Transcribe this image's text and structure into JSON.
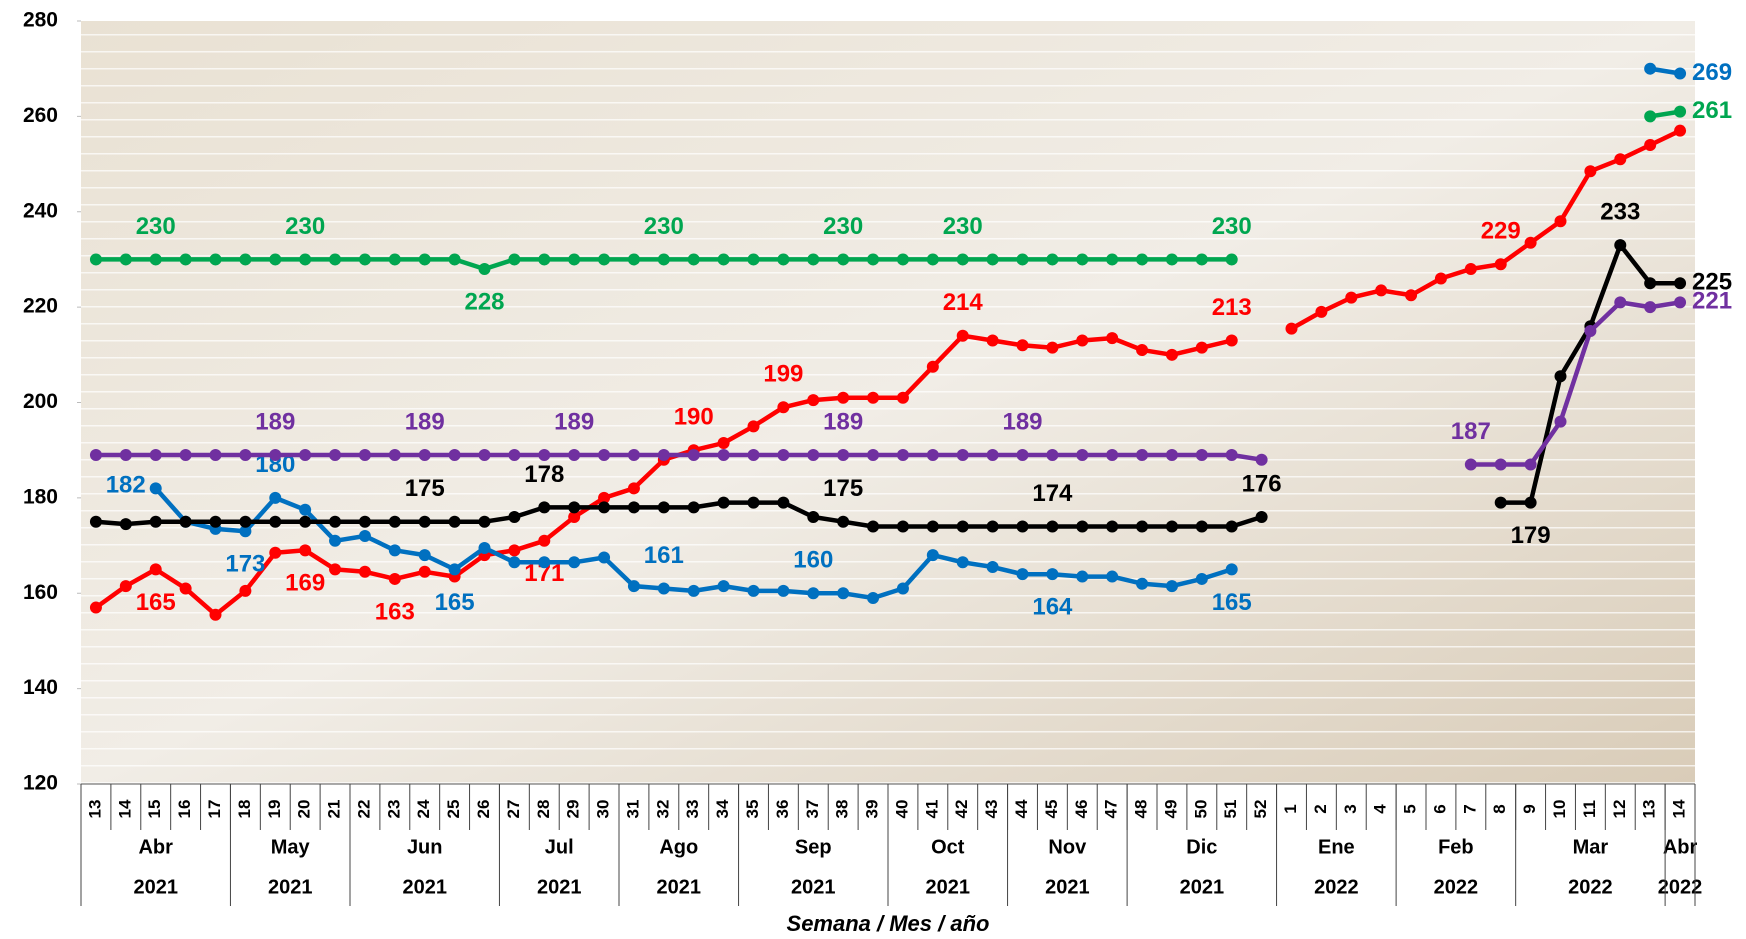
{
  "chart_data": {
    "type": "line",
    "x_title": "Semana / Mes / año",
    "categories": [
      "13",
      "14",
      "15",
      "16",
      "17",
      "18",
      "19",
      "20",
      "21",
      "22",
      "23",
      "24",
      "25",
      "26",
      "27",
      "28",
      "29",
      "30",
      "31",
      "32",
      "33",
      "34",
      "35",
      "36",
      "37",
      "38",
      "39",
      "40",
      "41",
      "42",
      "43",
      "44",
      "45",
      "46",
      "47",
      "48",
      "49",
      "50",
      "51",
      "52",
      "1",
      "2",
      "3",
      "4",
      "5",
      "6",
      "7",
      "8",
      "9",
      "10",
      "11",
      "12",
      "13",
      "14"
    ],
    "months": [
      "Abr",
      "Abr",
      "Abr",
      "Abr",
      "Abr",
      "May",
      "May",
      "May",
      "May",
      "Jun",
      "Jun",
      "Jun",
      "Jun",
      "Jun",
      "Jul",
      "Jul",
      "Jul",
      "Jul",
      "Ago",
      "Ago",
      "Ago",
      "Ago",
      "Sep",
      "Sep",
      "Sep",
      "Sep",
      "Sep",
      "Oct",
      "Oct",
      "Oct",
      "Oct",
      "Nov",
      "Nov",
      "Nov",
      "Nov",
      "Dic",
      "Dic",
      "Dic",
      "Dic",
      "Dic",
      "Ene",
      "Ene",
      "Ene",
      "Ene",
      "Feb",
      "Feb",
      "Feb",
      "Feb",
      "Mar",
      "Mar",
      "Mar",
      "Mar",
      "Mar",
      "Abr"
    ],
    "years": [
      "2021",
      "2021",
      "2021",
      "2021",
      "2021",
      "2021",
      "2021",
      "2021",
      "2021",
      "2021",
      "2021",
      "2021",
      "2021",
      "2021",
      "2021",
      "2021",
      "2021",
      "2021",
      "2021",
      "2021",
      "2021",
      "2021",
      "2021",
      "2021",
      "2021",
      "2021",
      "2021",
      "2021",
      "2021",
      "2021",
      "2021",
      "2021",
      "2021",
      "2021",
      "2021",
      "2021",
      "2021",
      "2021",
      "2021",
      "2021",
      "2022",
      "2022",
      "2022",
      "2022",
      "2022",
      "2022",
      "2022",
      "2022",
      "2022",
      "2022",
      "2022",
      "2022",
      "2022",
      "2022"
    ],
    "ylim": [
      120,
      280
    ],
    "yticks": [
      120,
      140,
      160,
      180,
      200,
      220,
      240,
      260,
      280
    ],
    "series": [
      {
        "color": "#00a650",
        "values": [
          230,
          230,
          230,
          230,
          230,
          230,
          230,
          230,
          230,
          230,
          230,
          230,
          230,
          228,
          230,
          230,
          230,
          230,
          230,
          230,
          230,
          230,
          230,
          230,
          230,
          230,
          230,
          230,
          230,
          230,
          230,
          230,
          230,
          230,
          230,
          230,
          230,
          230,
          230,
          null,
          null,
          null,
          null,
          null,
          null,
          null,
          null,
          null,
          null,
          null,
          null,
          null,
          260,
          261
        ],
        "value_labels": [
          null,
          null,
          "230",
          null,
          null,
          null,
          null,
          "230",
          null,
          null,
          null,
          null,
          null,
          "228",
          null,
          null,
          null,
          null,
          null,
          "230",
          null,
          null,
          null,
          null,
          null,
          "230",
          null,
          null,
          null,
          "230",
          null,
          null,
          null,
          null,
          null,
          null,
          null,
          null,
          "230",
          null,
          null,
          null,
          null,
          null,
          null,
          null,
          null,
          null,
          null,
          null,
          null,
          null,
          null,
          "261"
        ]
      },
      {
        "color": "#ff0000",
        "values": [
          157,
          161.5,
          165,
          161,
          155.5,
          160.5,
          168.5,
          169,
          165,
          164.5,
          163,
          164.5,
          163.5,
          168,
          169,
          171,
          176,
          180,
          182,
          188,
          190,
          191.5,
          195,
          199,
          200.5,
          201,
          201,
          201,
          207.5,
          214,
          213,
          212,
          211.5,
          213,
          213.5,
          211,
          210,
          211.5,
          213,
          null,
          215.5,
          219,
          222,
          223.5,
          222.5,
          226,
          228,
          229,
          233.5,
          238,
          248.5,
          251,
          254,
          257
        ],
        "value_labels": [
          null,
          null,
          "165",
          null,
          null,
          null,
          null,
          "169",
          null,
          null,
          "163",
          null,
          null,
          null,
          null,
          "171",
          null,
          null,
          null,
          null,
          "190",
          null,
          null,
          "199",
          null,
          null,
          null,
          null,
          null,
          "214",
          null,
          null,
          null,
          null,
          null,
          null,
          null,
          null,
          "213",
          null,
          null,
          null,
          null,
          null,
          null,
          null,
          null,
          "229",
          null,
          null,
          null,
          null,
          null,
          null
        ]
      },
      {
        "color": "#0070c0",
        "values": [
          null,
          null,
          182,
          175,
          173.5,
          173,
          180,
          177.5,
          171,
          172,
          169,
          168,
          165,
          169.5,
          166.5,
          166.5,
          166.5,
          167.5,
          161.5,
          161,
          160.5,
          161.5,
          160.5,
          160.5,
          160,
          160,
          159,
          161,
          168,
          166.5,
          165.5,
          164,
          164,
          163.5,
          163.5,
          162,
          161.5,
          163,
          165,
          null,
          null,
          null,
          null,
          null,
          null,
          null,
          null,
          null,
          null,
          null,
          null,
          null,
          270,
          269
        ],
        "value_labels": [
          null,
          null,
          "182",
          null,
          null,
          "173",
          "180",
          null,
          null,
          null,
          null,
          null,
          "165",
          null,
          null,
          null,
          null,
          null,
          null,
          "161",
          null,
          null,
          null,
          null,
          "160",
          null,
          null,
          null,
          null,
          null,
          null,
          null,
          "164",
          null,
          null,
          null,
          null,
          null,
          "165",
          null,
          null,
          null,
          null,
          null,
          null,
          null,
          null,
          null,
          null,
          null,
          null,
          null,
          null,
          "269"
        ]
      },
      {
        "color": "#000000",
        "values": [
          175,
          174.5,
          175,
          175,
          175,
          175,
          175,
          175,
          175,
          175,
          175,
          175,
          175,
          175,
          176,
          178,
          178,
          178,
          178,
          178,
          178,
          179,
          179,
          179,
          176,
          175,
          174,
          174,
          174,
          174,
          174,
          174,
          174,
          174,
          174,
          174,
          174,
          174,
          174,
          176,
          null,
          null,
          null,
          null,
          null,
          null,
          null,
          179,
          179,
          205.5,
          216,
          233,
          225,
          225
        ],
        "value_labels": [
          null,
          null,
          null,
          null,
          null,
          null,
          null,
          null,
          null,
          null,
          null,
          "175",
          null,
          null,
          null,
          "178",
          null,
          null,
          null,
          null,
          null,
          null,
          null,
          null,
          null,
          "175",
          null,
          null,
          null,
          null,
          null,
          null,
          "174",
          null,
          null,
          null,
          null,
          null,
          null,
          "176",
          null,
          null,
          null,
          null,
          null,
          null,
          null,
          null,
          "179",
          null,
          null,
          "233",
          null,
          "225"
        ]
      },
      {
        "color": "#7030a0",
        "values": [
          189,
          189,
          189,
          189,
          189,
          189,
          189,
          189,
          189,
          189,
          189,
          189,
          189,
          189,
          189,
          189,
          189,
          189,
          189,
          189,
          189,
          189,
          189,
          189,
          189,
          189,
          189,
          189,
          189,
          189,
          189,
          189,
          189,
          189,
          189,
          189,
          189,
          189,
          189,
          188,
          null,
          null,
          null,
          null,
          null,
          null,
          187,
          187,
          187,
          196,
          215,
          221,
          220,
          221
        ],
        "value_labels": [
          null,
          null,
          null,
          null,
          null,
          null,
          "189",
          null,
          null,
          null,
          null,
          "189",
          null,
          null,
          null,
          null,
          "189",
          null,
          null,
          null,
          null,
          null,
          null,
          null,
          null,
          "189",
          null,
          null,
          null,
          null,
          null,
          "189",
          null,
          null,
          null,
          null,
          null,
          null,
          null,
          null,
          null,
          null,
          null,
          null,
          null,
          null,
          "187",
          null,
          null,
          null,
          null,
          null,
          null,
          "221"
        ]
      }
    ]
  }
}
